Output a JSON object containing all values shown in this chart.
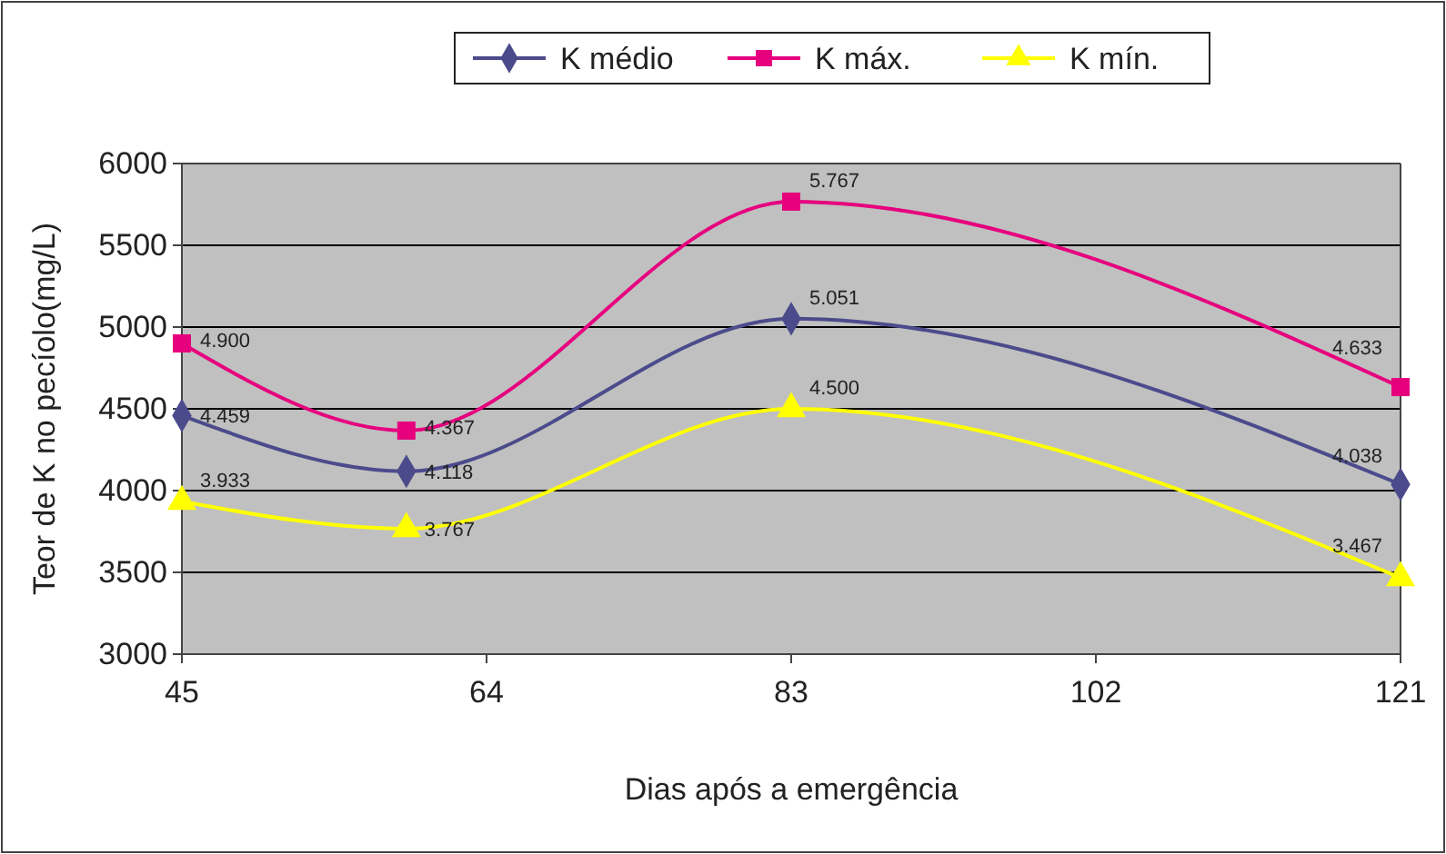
{
  "chart_data": {
    "type": "line",
    "xlabel": "Dias após a emergência",
    "ylabel": "Teor de K no pecíolo(mg/L)",
    "x": [
      45,
      59,
      83,
      121
    ],
    "xlim": [
      45,
      121
    ],
    "xticks": [
      45,
      64,
      83,
      102,
      121
    ],
    "ylim": [
      3000,
      6000
    ],
    "yticks": [
      3000,
      3500,
      4000,
      4500,
      5000,
      5500,
      6000
    ],
    "grid": "y",
    "legend": "top",
    "series": [
      {
        "name": "K médio",
        "color": "#4b4b8c",
        "marker": "diamond",
        "values": [
          4459,
          4118,
          5051,
          4038
        ],
        "value_labels": [
          "4.459",
          "4.118",
          "5.051",
          "4.038"
        ]
      },
      {
        "name": "K máx.",
        "color": "#e6007e",
        "marker": "square",
        "values": [
          4900,
          4367,
          5767,
          4633
        ],
        "value_labels": [
          "4.900",
          "4.367",
          "5.767",
          "4.633"
        ]
      },
      {
        "name": "K mín.",
        "color": "#ffff00",
        "marker": "triangle",
        "values": [
          3933,
          3767,
          4500,
          3467
        ],
        "value_labels": [
          "3.933",
          "3.767",
          "4.500",
          "3.467"
        ]
      }
    ]
  }
}
